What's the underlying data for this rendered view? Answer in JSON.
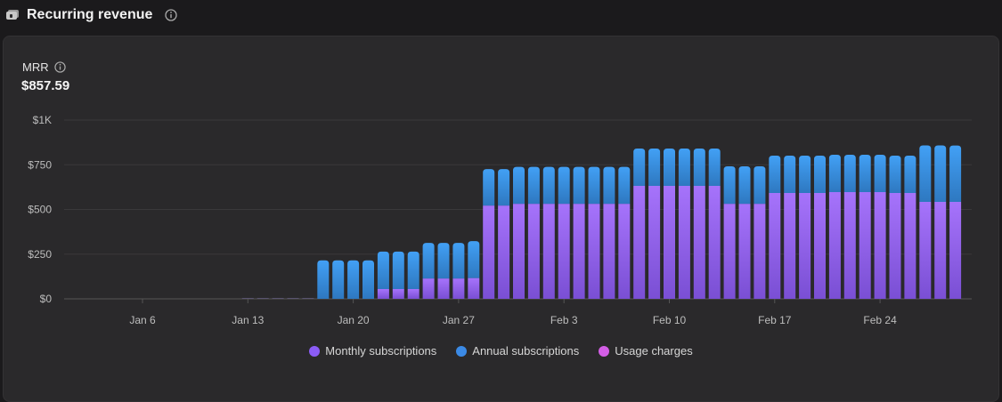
{
  "header": {
    "title": "Recurring revenue",
    "icon": "wallet-icon",
    "info_icon": "info-icon"
  },
  "metric": {
    "label": "MRR",
    "value": "$857.59"
  },
  "colors": {
    "monthly": "#9b6cf7",
    "annual": "#3a97ee",
    "usage": "#d35ee6",
    "background": "#2a292b"
  },
  "chart_data": {
    "type": "bar",
    "stacked": true,
    "ylim": [
      0,
      1000
    ],
    "yticks": [
      0,
      250,
      500,
      750,
      1000
    ],
    "ytick_labels": [
      "$0",
      "$250",
      "$500",
      "$750",
      "$1K"
    ],
    "xtick_labels": [
      "Jan 6",
      "Jan 13",
      "Jan 20",
      "Jan 27",
      "Feb 3",
      "Feb 10",
      "Feb 17",
      "Feb 24"
    ],
    "xtick_days": [
      6,
      13,
      20,
      27,
      34,
      41,
      48,
      55
    ],
    "grid": true,
    "legend_position": "bottom",
    "categories": [
      "Jan 1",
      "Jan 2",
      "Jan 3",
      "Jan 4",
      "Jan 5",
      "Jan 6",
      "Jan 7",
      "Jan 8",
      "Jan 9",
      "Jan 10",
      "Jan 11",
      "Jan 12",
      "Jan 13",
      "Jan 14",
      "Jan 15",
      "Jan 16",
      "Jan 17",
      "Jan 18",
      "Jan 19",
      "Jan 20",
      "Jan 21",
      "Jan 22",
      "Jan 23",
      "Jan 24",
      "Jan 25",
      "Jan 26",
      "Jan 27",
      "Jan 28",
      "Jan 29",
      "Jan 30",
      "Jan 31",
      "Feb 1",
      "Feb 2",
      "Feb 3",
      "Feb 4",
      "Feb 5",
      "Feb 6",
      "Feb 7",
      "Feb 8",
      "Feb 9",
      "Feb 10",
      "Feb 11",
      "Feb 12",
      "Feb 13",
      "Feb 14",
      "Feb 15",
      "Feb 16",
      "Feb 17",
      "Feb 18",
      "Feb 19",
      "Feb 20",
      "Feb 21",
      "Feb 22",
      "Feb 23",
      "Feb 24",
      "Feb 25",
      "Feb 26",
      "Feb 27",
      "Feb 28",
      "Feb 29"
    ],
    "series": [
      {
        "name": "Monthly subscriptions",
        "values": [
          0,
          0,
          0,
          0,
          0,
          0,
          0,
          0,
          0,
          0,
          0,
          0,
          3,
          3,
          3,
          3,
          3,
          0,
          0,
          0,
          0,
          55,
          55,
          55,
          114,
          114,
          114,
          116,
          522,
          522,
          532,
          532,
          532,
          532,
          532,
          532,
          532,
          532,
          632,
          632,
          632,
          632,
          632,
          632,
          532,
          532,
          532,
          592,
          592,
          592,
          592,
          597,
          597,
          597,
          597,
          592,
          592,
          542,
          542,
          542
        ]
      },
      {
        "name": "Annual subscriptions",
        "values": [
          0,
          0,
          0,
          0,
          0,
          0,
          0,
          0,
          0,
          0,
          0,
          0,
          0,
          0,
          0,
          0,
          0,
          215,
          215,
          215,
          215,
          209,
          209,
          209,
          199,
          199,
          199,
          207,
          204,
          204,
          206,
          206,
          206,
          206,
          206,
          206,
          206,
          206,
          209,
          209,
          209,
          209,
          209,
          209,
          209,
          209,
          209,
          209,
          209,
          209,
          209,
          209,
          209,
          209,
          209,
          209,
          209,
          316,
          316,
          315.59
        ]
      },
      {
        "name": "Usage charges",
        "values": [
          0,
          0,
          0,
          0,
          0,
          0,
          0,
          0,
          0,
          0,
          0,
          0,
          0,
          0,
          0,
          0,
          0,
          0,
          0,
          0,
          0,
          0,
          0,
          0,
          0,
          0,
          0,
          0,
          0,
          0,
          0,
          0,
          0,
          0,
          0,
          0,
          0,
          0,
          0,
          0,
          0,
          0,
          0,
          0,
          0,
          0,
          0,
          0,
          0,
          0,
          0,
          0,
          0,
          0,
          0,
          0,
          0,
          0,
          0,
          0
        ]
      }
    ]
  }
}
